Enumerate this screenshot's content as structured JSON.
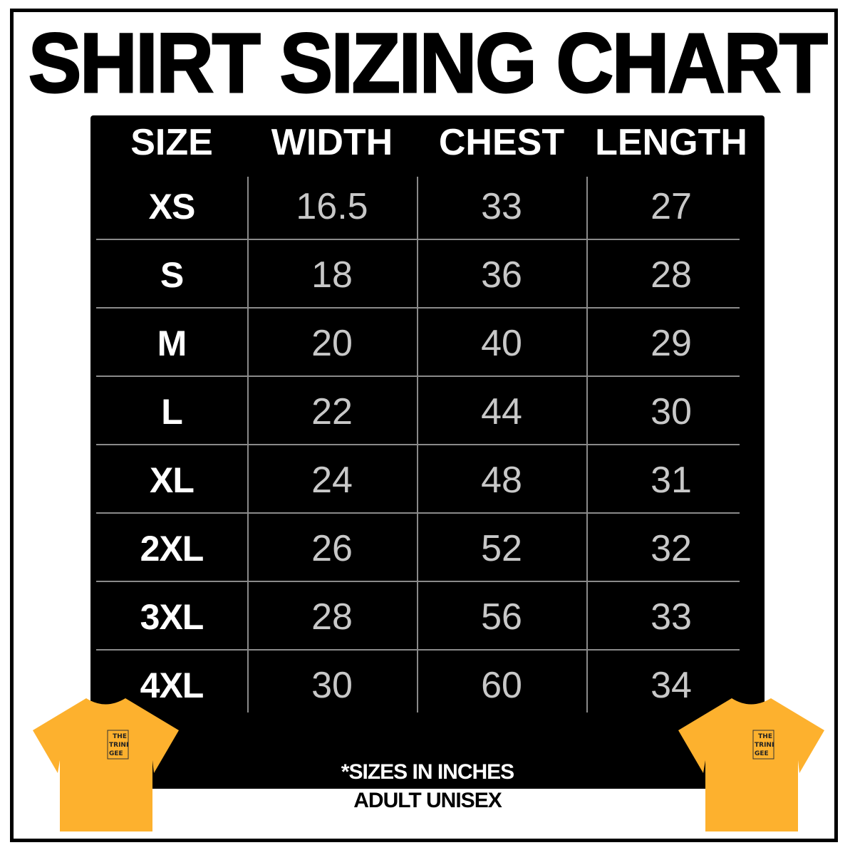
{
  "title": "SHIRT SIZING CHART",
  "columns": [
    "SIZE",
    "WIDTH",
    "CHEST",
    "LENGTH"
  ],
  "rows": [
    [
      "XS",
      "16.5",
      "33",
      "27"
    ],
    [
      "S",
      "18",
      "36",
      "28"
    ],
    [
      "M",
      "20",
      "40",
      "29"
    ],
    [
      "L",
      "22",
      "44",
      "30"
    ],
    [
      "XL",
      "24",
      "48",
      "31"
    ],
    [
      "2XL",
      "26",
      "52",
      "32"
    ],
    [
      "3XL",
      "28",
      "56",
      "33"
    ],
    [
      "4XL",
      "30",
      "60",
      "34"
    ]
  ],
  "notes": {
    "units": "*SIZES IN INCHES",
    "fit": "ADULT UNISEX"
  },
  "shirt_logo": [
    "THE",
    "TRINI",
    "GEE"
  ],
  "colors": {
    "shirt": "#FDB12E",
    "panel": "#000000",
    "values": "#C8C8C8"
  }
}
